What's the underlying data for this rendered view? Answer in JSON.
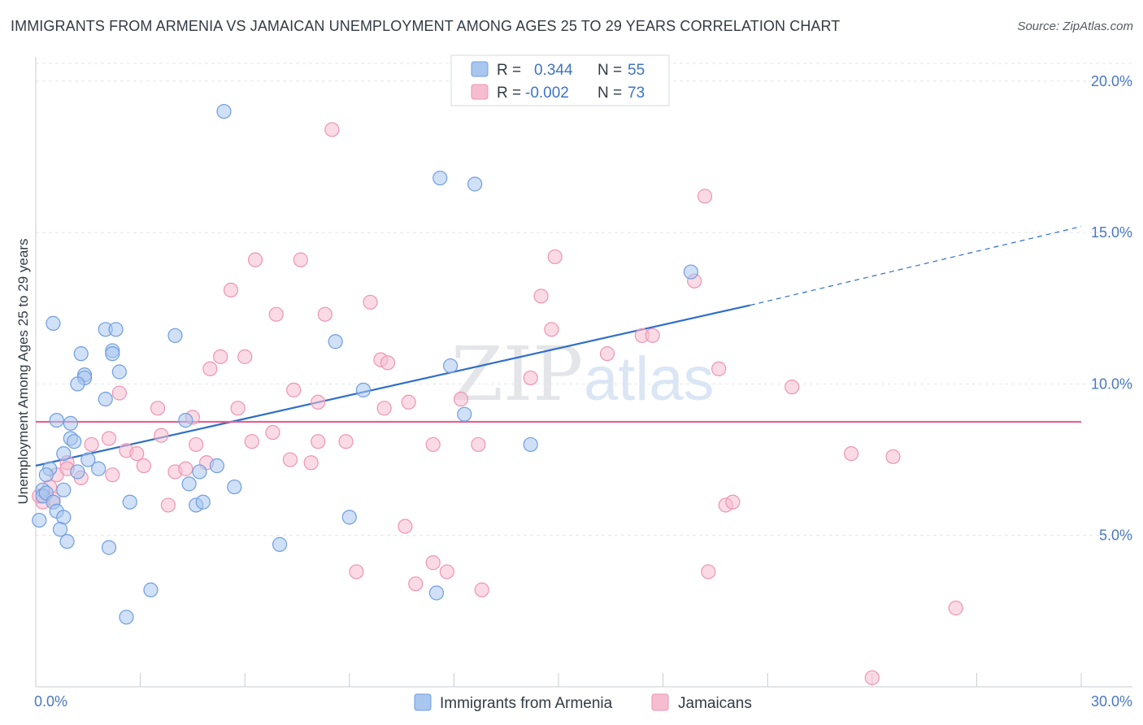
{
  "header": {
    "title": "IMMIGRANTS FROM ARMENIA VS JAMAICAN UNEMPLOYMENT AMONG AGES 25 TO 29 YEARS CORRELATION CHART",
    "source": "Source: ZipAtlas.com"
  },
  "watermark": {
    "zip": "ZIP",
    "atlas": "atlas"
  },
  "stats_legend": {
    "r_label": "R =",
    "n_label": "N =",
    "rows": [
      {
        "r": "0.344",
        "n": "55"
      },
      {
        "r": "-0.002",
        "n": "73"
      }
    ]
  },
  "chart_data": {
    "type": "scatter",
    "title": "IMMIGRANTS FROM ARMENIA VS JAMAICAN UNEMPLOYMENT AMONG AGES 25 TO 29 YEARS CORRELATION CHART",
    "xlabel": "",
    "ylabel": "Unemployment Among Ages 25 to 29 years",
    "xlim": [
      0,
      30
    ],
    "ylim": [
      0,
      20.8
    ],
    "x_tick_labels": [
      "0.0%",
      "30.0%"
    ],
    "y_ticks": [
      5,
      10,
      15,
      20
    ],
    "y_tick_labels": [
      "5.0%",
      "10.0%",
      "15.0%",
      "20.0%"
    ],
    "grid": "horizontal dashed",
    "legend_position": "bottom-center",
    "colors": {
      "armenia_fill": "#a9c6ee",
      "armenia_stroke": "#6f9ee0",
      "armenia_line": "#2f6fc8",
      "jamaica_fill": "#f6bdd0",
      "jamaica_stroke": "#ee94b3",
      "jamaica_line": "#e26490",
      "text_blue": "#4a78c2"
    },
    "series": [
      {
        "name": "Immigrants from Armenia",
        "color": "#6f9ee0",
        "trend": {
          "x": [
            0,
            20.5
          ],
          "y": [
            7.3,
            12.6
          ],
          "dashed_to": [
            30,
            15.2
          ]
        },
        "points": [
          [
            5.4,
            19.0
          ],
          [
            11.6,
            16.8
          ],
          [
            12.6,
            16.6
          ],
          [
            0.5,
            12.0
          ],
          [
            2.0,
            11.8
          ],
          [
            2.3,
            11.8
          ],
          [
            4.0,
            11.6
          ],
          [
            8.6,
            11.4
          ],
          [
            1.3,
            11.0
          ],
          [
            2.2,
            11.1
          ],
          [
            2.2,
            11.0
          ],
          [
            2.4,
            10.4
          ],
          [
            1.4,
            10.3
          ],
          [
            1.4,
            10.2
          ],
          [
            1.2,
            10.0
          ],
          [
            11.9,
            10.6
          ],
          [
            9.4,
            9.8
          ],
          [
            2.0,
            9.5
          ],
          [
            0.6,
            8.8
          ],
          [
            1.0,
            8.7
          ],
          [
            4.3,
            8.8
          ],
          [
            12.3,
            9.0
          ],
          [
            1.0,
            8.2
          ],
          [
            1.1,
            8.1
          ],
          [
            14.2,
            8.0
          ],
          [
            0.8,
            7.7
          ],
          [
            1.5,
            7.5
          ],
          [
            5.2,
            7.3
          ],
          [
            1.8,
            7.2
          ],
          [
            0.4,
            7.2
          ],
          [
            0.3,
            7.0
          ],
          [
            1.2,
            7.1
          ],
          [
            4.7,
            7.1
          ],
          [
            4.4,
            6.7
          ],
          [
            0.2,
            6.5
          ],
          [
            0.2,
            6.3
          ],
          [
            5.7,
            6.6
          ],
          [
            0.3,
            6.4
          ],
          [
            0.8,
            6.5
          ],
          [
            0.5,
            6.1
          ],
          [
            2.7,
            6.1
          ],
          [
            4.6,
            6.0
          ],
          [
            4.8,
            6.1
          ],
          [
            0.6,
            5.8
          ],
          [
            0.8,
            5.6
          ],
          [
            0.1,
            5.5
          ],
          [
            0.7,
            5.2
          ],
          [
            9.0,
            5.6
          ],
          [
            0.9,
            4.8
          ],
          [
            2.1,
            4.6
          ],
          [
            7.0,
            4.7
          ],
          [
            3.3,
            3.2
          ],
          [
            11.5,
            3.1
          ],
          [
            2.6,
            2.3
          ],
          [
            18.8,
            13.7
          ]
        ]
      },
      {
        "name": "Jamaicans",
        "color": "#ee94b3",
        "trend": {
          "x": [
            0,
            30
          ],
          "y": [
            8.75,
            8.75
          ]
        },
        "points": [
          [
            8.5,
            18.4
          ],
          [
            19.2,
            16.2
          ],
          [
            6.3,
            14.1
          ],
          [
            7.6,
            14.1
          ],
          [
            14.9,
            14.2
          ],
          [
            18.9,
            13.4
          ],
          [
            5.6,
            13.1
          ],
          [
            9.6,
            12.7
          ],
          [
            14.5,
            12.9
          ],
          [
            6.9,
            12.3
          ],
          [
            8.3,
            12.3
          ],
          [
            14.8,
            11.8
          ],
          [
            17.4,
            11.6
          ],
          [
            17.7,
            11.6
          ],
          [
            5.3,
            10.9
          ],
          [
            6.0,
            10.9
          ],
          [
            9.9,
            10.8
          ],
          [
            10.1,
            10.7
          ],
          [
            16.4,
            11.0
          ],
          [
            5.0,
            10.5
          ],
          [
            19.6,
            10.5
          ],
          [
            14.2,
            10.2
          ],
          [
            7.4,
            9.8
          ],
          [
            2.4,
            9.7
          ],
          [
            21.7,
            9.9
          ],
          [
            8.1,
            9.4
          ],
          [
            10.7,
            9.4
          ],
          [
            3.5,
            9.2
          ],
          [
            5.8,
            9.2
          ],
          [
            10.0,
            9.2
          ],
          [
            4.5,
            8.9
          ],
          [
            12.2,
            9.5
          ],
          [
            6.8,
            8.4
          ],
          [
            2.1,
            8.2
          ],
          [
            3.6,
            8.3
          ],
          [
            6.2,
            8.1
          ],
          [
            8.1,
            8.1
          ],
          [
            8.9,
            8.1
          ],
          [
            11.4,
            8.0
          ],
          [
            4.6,
            8.0
          ],
          [
            12.7,
            8.0
          ],
          [
            1.6,
            8.0
          ],
          [
            2.6,
            7.8
          ],
          [
            2.9,
            7.7
          ],
          [
            7.3,
            7.5
          ],
          [
            7.9,
            7.4
          ],
          [
            23.4,
            7.7
          ],
          [
            24.6,
            7.6
          ],
          [
            0.9,
            7.4
          ],
          [
            3.1,
            7.3
          ],
          [
            4.9,
            7.4
          ],
          [
            2.2,
            7.0
          ],
          [
            4.0,
            7.1
          ],
          [
            4.3,
            7.2
          ],
          [
            0.6,
            7.0
          ],
          [
            1.3,
            6.9
          ],
          [
            0.9,
            7.2
          ],
          [
            0.4,
            6.6
          ],
          [
            0.5,
            6.2
          ],
          [
            0.2,
            6.1
          ],
          [
            3.8,
            6.0
          ],
          [
            19.8,
            6.0
          ],
          [
            20.0,
            6.1
          ],
          [
            10.6,
            5.3
          ],
          [
            9.2,
            3.8
          ],
          [
            11.4,
            4.1
          ],
          [
            11.8,
            3.8
          ],
          [
            19.3,
            3.8
          ],
          [
            10.9,
            3.4
          ],
          [
            12.8,
            3.2
          ],
          [
            26.4,
            2.6
          ],
          [
            24.0,
            0.3
          ],
          [
            0.1,
            6.3
          ]
        ]
      }
    ]
  },
  "bottom_legend": {
    "items": [
      {
        "label": "Immigrants from Armenia"
      },
      {
        "label": "Jamaicans"
      }
    ]
  }
}
